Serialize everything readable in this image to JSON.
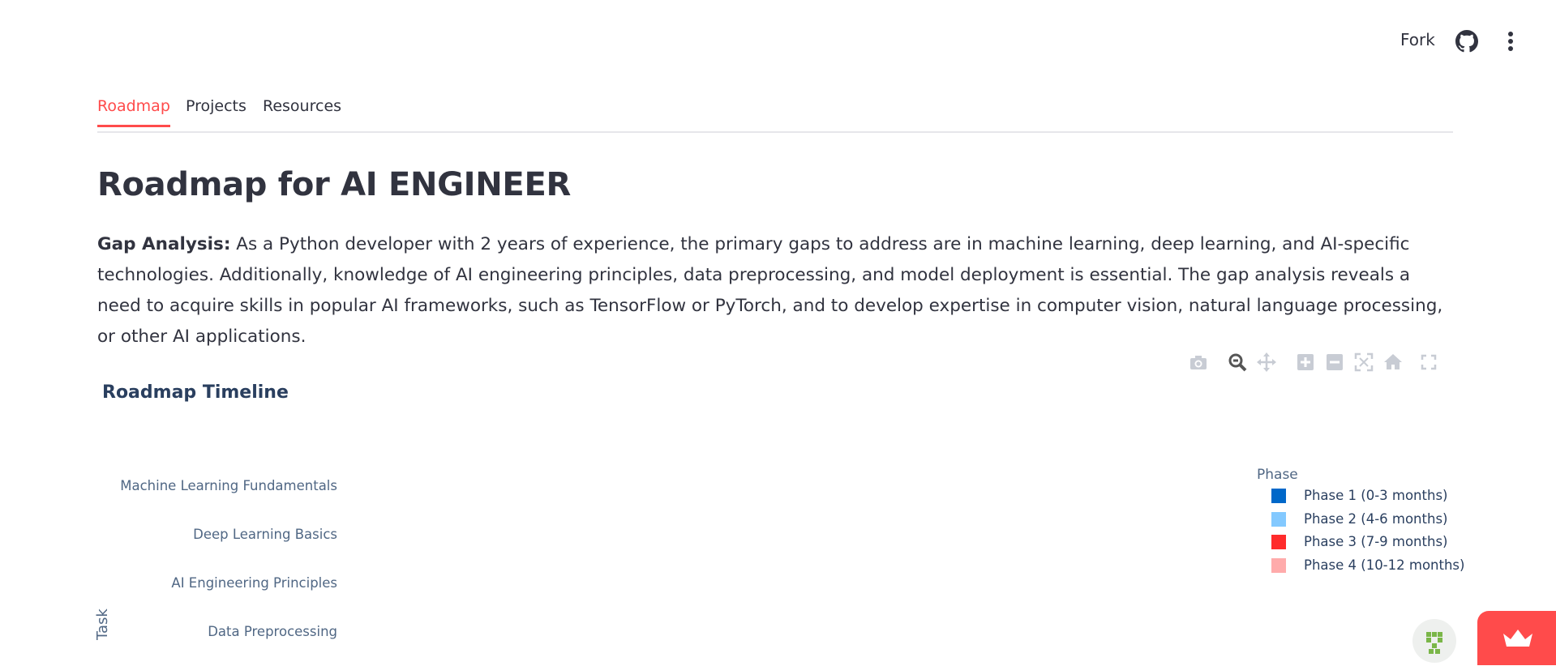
{
  "header": {
    "fork_label": "Fork"
  },
  "tabs": [
    {
      "label": "Roadmap",
      "active": true
    },
    {
      "label": "Projects",
      "active": false
    },
    {
      "label": "Resources",
      "active": false
    }
  ],
  "page": {
    "title": "Roadmap for AI ENGINEER",
    "gap_label": "Gap Analysis:",
    "gap_text": " As a Python developer with 2 years of experience, the primary gaps to address are in machine learning, deep learning, and AI-specific technologies. Additionally, knowledge of AI engineering principles, data preprocessing, and model deployment is essential. The gap analysis reveals a need to acquire skills in popular AI frameworks, such as TensorFlow or PyTorch, and to develop expertise in computer vision, natural language processing, or other AI applications."
  },
  "modebar": [
    "camera-icon",
    "zoom-icon",
    "pan-icon",
    "zoom-in-icon",
    "zoom-out-icon",
    "autoscale-icon",
    "reset-axes-icon",
    "fullscreen-icon"
  ],
  "chart_data": {
    "type": "bar",
    "title": "Roadmap Timeline",
    "ylabel": "Task",
    "categories": [
      "Machine Learning Fundamentals",
      "Deep Learning Basics",
      "AI Engineering Principles",
      "Data Preprocessing"
    ],
    "legend_title": "Phase",
    "legend_position": "top-right",
    "series": [
      {
        "name": "Phase 1 (0-3 months)",
        "color": "#0068c9"
      },
      {
        "name": "Phase 2 (4-6 months)",
        "color": "#83c9ff"
      },
      {
        "name": "Phase 3 (7-9 months)",
        "color": "#ff2b2b"
      },
      {
        "name": "Phase 4 (10-12 months)",
        "color": "#ffabab"
      }
    ]
  },
  "colors": {
    "accent": "#ff4b4b",
    "text": "#31333f"
  }
}
